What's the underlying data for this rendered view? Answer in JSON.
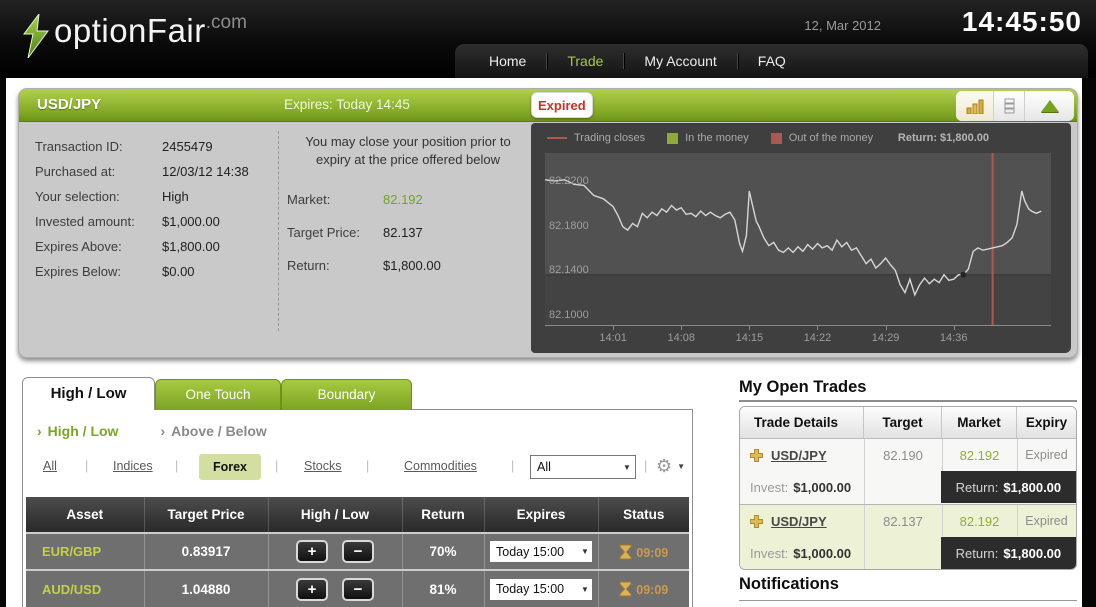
{
  "header": {
    "logo_text": "optionFair",
    "logo_suffix": ".com",
    "date": "12, Mar 2012",
    "time": "14:45:50",
    "nav": [
      {
        "label": "Home",
        "active": false
      },
      {
        "label": "Trade",
        "active": true
      },
      {
        "label": "My Account",
        "active": false
      },
      {
        "label": "FAQ",
        "active": false
      }
    ]
  },
  "trade_panel": {
    "pair": "USD/JPY",
    "expires_text": "Expires:  Today 14:45",
    "status_badge": "Expired",
    "toolbar_icons": [
      "bar-chart-icon",
      "trade-list-icon",
      "collapse-triangle-icon"
    ],
    "details": [
      {
        "label": "Transaction ID:",
        "value": "2455479"
      },
      {
        "label": "Purchased at:",
        "value": "12/03/12 14:38"
      },
      {
        "label": "Your selection:",
        "value": "High"
      },
      {
        "label": "Invested amount:",
        "value": "$1,000.00"
      },
      {
        "label": "Expires Above:",
        "value": "$1,800.00"
      },
      {
        "label": "Expires Below:",
        "value": "$0.00"
      }
    ],
    "close_note": "You may close your position prior to expiry at the price offered below",
    "market_label": "Market:",
    "market_value": "82.192",
    "target_label": "Target Price:",
    "target_value": "82.137",
    "return_label": "Return:",
    "return_value": "$1,800.00"
  },
  "chart_data": {
    "type": "line",
    "symbol": "USD/JPY",
    "legend": [
      {
        "label": "Trading closes",
        "swatch": "line",
        "color": "#b2574e"
      },
      {
        "label": "In the money",
        "swatch": "square",
        "color": "#8fa93a"
      },
      {
        "label": "Out of the money",
        "swatch": "square",
        "color": "#a85a52"
      }
    ],
    "return_note": "Return: $1,800.00",
    "x_start": "13:54",
    "x_end": "14:46",
    "x_unit": "minutes_after_x_start",
    "x_ticks": [
      "14:01",
      "14:08",
      "14:15",
      "14:22",
      "14:29",
      "14:36"
    ],
    "y_ticks": [
      {
        "value": 82.22,
        "label": "82.2200"
      },
      {
        "value": 82.18,
        "label": "82.1800"
      },
      {
        "value": 82.14,
        "label": "82.1400"
      },
      {
        "value": 82.1,
        "label": "82.1000"
      }
    ],
    "y_range": [
      82.092,
      82.246
    ],
    "target_price": 82.137,
    "trading_closes_time": "14:40",
    "purchase_point": {
      "time": "14:37",
      "value": 82.137
    },
    "line_color": "#d6d6d6",
    "grid": false,
    "legend_position": "top",
    "series": [
      {
        "name": "USD/JPY",
        "points": [
          [
            0,
            82.222
          ],
          [
            1,
            82.221
          ],
          [
            2,
            82.222
          ],
          [
            3,
            82.218
          ],
          [
            4,
            82.217
          ],
          [
            5,
            82.208
          ],
          [
            6,
            82.205
          ],
          [
            7,
            82.198
          ],
          [
            7.5,
            82.19
          ],
          [
            8,
            82.18
          ],
          [
            8.5,
            82.177
          ],
          [
            9,
            82.183
          ],
          [
            9.5,
            82.18
          ],
          [
            10,
            82.192
          ],
          [
            10.5,
            82.188
          ],
          [
            11,
            82.193
          ],
          [
            11.5,
            82.19
          ],
          [
            12,
            82.196
          ],
          [
            12.5,
            82.193
          ],
          [
            13,
            82.199
          ],
          [
            13.5,
            82.195
          ],
          [
            14,
            82.197
          ],
          [
            14.5,
            82.191
          ],
          [
            15,
            82.192
          ],
          [
            15.5,
            82.189
          ],
          [
            16,
            82.194
          ],
          [
            16.5,
            82.19
          ],
          [
            17,
            82.193
          ],
          [
            17.5,
            82.19
          ],
          [
            18,
            82.188
          ],
          [
            18.5,
            82.191
          ],
          [
            19,
            82.193
          ],
          [
            19.5,
            82.186
          ],
          [
            20,
            82.165
          ],
          [
            20.3,
            82.158
          ],
          [
            20.7,
            82.172
          ],
          [
            21,
            82.212
          ],
          [
            21.3,
            82.2
          ],
          [
            21.7,
            82.185
          ],
          [
            22,
            82.18
          ],
          [
            22.5,
            82.17
          ],
          [
            23,
            82.163
          ],
          [
            23.5,
            82.166
          ],
          [
            24,
            82.159
          ],
          [
            24.5,
            82.157
          ],
          [
            25,
            82.161
          ],
          [
            25.5,
            82.157
          ],
          [
            26,
            82.162
          ],
          [
            26.5,
            82.158
          ],
          [
            27,
            82.164
          ],
          [
            27.5,
            82.16
          ],
          [
            28,
            82.165
          ],
          [
            28.5,
            82.161
          ],
          [
            29,
            82.163
          ],
          [
            29.5,
            82.159
          ],
          [
            30,
            82.168
          ],
          [
            30.5,
            82.162
          ],
          [
            31,
            82.166
          ],
          [
            31.5,
            82.159
          ],
          [
            32,
            82.161
          ],
          [
            32.5,
            82.154
          ],
          [
            33,
            82.147
          ],
          [
            33.5,
            82.151
          ],
          [
            34,
            82.143
          ],
          [
            34.5,
            82.147
          ],
          [
            35,
            82.152
          ],
          [
            35.5,
            82.146
          ],
          [
            36,
            82.141
          ],
          [
            36.5,
            82.128
          ],
          [
            37,
            82.121
          ],
          [
            37.5,
            82.133
          ],
          [
            38,
            82.119
          ],
          [
            38.5,
            82.128
          ],
          [
            39,
            82.134
          ],
          [
            39.5,
            82.129
          ],
          [
            40,
            82.133
          ],
          [
            40.5,
            82.13
          ],
          [
            41,
            82.137
          ],
          [
            41.5,
            82.132
          ],
          [
            42,
            82.133
          ],
          [
            42.5,
            82.137
          ],
          [
            43,
            82.137
          ],
          [
            43.5,
            82.142
          ],
          [
            44,
            82.158
          ],
          [
            44.5,
            82.161
          ],
          [
            45,
            82.159
          ],
          [
            45.5,
            82.16
          ],
          [
            46,
            82.161
          ],
          [
            46.5,
            82.162
          ],
          [
            47,
            82.163
          ],
          [
            47.5,
            82.166
          ],
          [
            48,
            82.17
          ],
          [
            48.5,
            82.182
          ],
          [
            49,
            82.212
          ],
          [
            49.3,
            82.203
          ],
          [
            49.7,
            82.196
          ],
          [
            50,
            82.194
          ],
          [
            50.5,
            82.192
          ],
          [
            51,
            82.194
          ]
        ]
      }
    ]
  },
  "product_tabs": {
    "tabs": [
      {
        "label": "High / Low",
        "active": true
      },
      {
        "label": "One Touch",
        "active": false
      },
      {
        "label": "Boundary",
        "active": false
      }
    ],
    "crumbs": [
      {
        "arrow": "›",
        "label": "High / Low",
        "active": true
      },
      {
        "arrow": "›",
        "label": "Above / Below",
        "active": false
      }
    ]
  },
  "filters": {
    "links": [
      "All",
      "Indices",
      "Forex",
      "Stocks",
      "Commodities"
    ],
    "active": "Forex",
    "separator": "|",
    "dropdown_value": "All",
    "dropdown_arrow": "▼",
    "gear_glyph": "⚙",
    "gear_caret": "▼"
  },
  "asset_table": {
    "headers": [
      "Asset",
      "Target Price",
      "High / Low",
      "Return",
      "Expires",
      "Status"
    ],
    "plus_label": "+",
    "minus_label": "−",
    "dropdown_arrow": "▼",
    "rows": [
      {
        "asset": "EUR/GBP",
        "target_price": "0.83917",
        "return": "70%",
        "expires": "Today 15:00",
        "countdown": "09:09"
      },
      {
        "asset": "AUD/USD",
        "target_price": "1.04880",
        "return": "81%",
        "expires": "Today 15:00",
        "countdown": "09:09"
      }
    ]
  },
  "open_trades": {
    "title": "My Open Trades",
    "headers": [
      "Trade Details",
      "Target",
      "Market",
      "Expiry"
    ],
    "rows": [
      {
        "pair": "USD/JPY",
        "target": "82.190",
        "market": "82.192",
        "expiry": "Expired",
        "invest_label": "Invest:",
        "invest": "$1,000.00",
        "return_label": "Return:",
        "return": "$1,800.00"
      },
      {
        "pair": "USD/JPY",
        "target": "82.137",
        "market": "82.192",
        "expiry": "Expired",
        "invest_label": "Invest:",
        "invest": "$1,000.00",
        "return_label": "Return:",
        "return": "$1,800.00"
      }
    ]
  },
  "notifications": {
    "title": "Notifications"
  },
  "colors": {
    "accent_green": "#7da322",
    "expired_red": "#c4332b",
    "asset_green": "#c5d145",
    "market_green": "#93ac3c",
    "gold": "#d0a54c",
    "chart_bg": "#3f3f3f"
  }
}
